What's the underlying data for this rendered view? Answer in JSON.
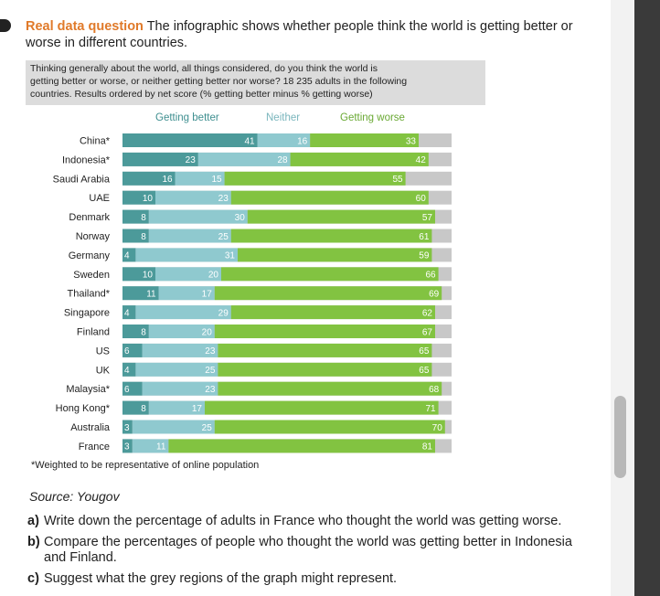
{
  "question": {
    "label": "Real data question",
    "intro_line1": "The infographic shows whether people think the world is getting better or",
    "intro_line2": "worse in different countries."
  },
  "survey": {
    "line1": "Thinking generally about the world, all things considered, do you think the world is",
    "line2": "getting better or worse, or neither getting better nor worse? 18 235 adults in the following",
    "line3": "countries. Results ordered by net score (% getting better minus % getting worse)"
  },
  "chart_data": {
    "type": "bar",
    "stacked": true,
    "orientation": "horizontal",
    "legend": [
      "Getting better",
      "Neither",
      "Getting worse"
    ],
    "colors": {
      "better": "#4c9a9a",
      "neither": "#8fc9cf",
      "worse": "#82c341",
      "unknown": "#c8c8c8"
    },
    "categories": [
      "China*",
      "Indonesia*",
      "Saudi Arabia",
      "UAE",
      "Denmark",
      "Norway",
      "Germany",
      "Sweden",
      "Thailand*",
      "Singapore",
      "Finland",
      "US",
      "UK",
      "Malaysia*",
      "Hong Kong*",
      "Australia",
      "France"
    ],
    "series": [
      {
        "name": "Getting better",
        "values": [
          41,
          23,
          16,
          10,
          8,
          8,
          4,
          10,
          11,
          4,
          8,
          6,
          4,
          6,
          8,
          3,
          3
        ]
      },
      {
        "name": "Neither",
        "values": [
          16,
          28,
          15,
          23,
          30,
          25,
          31,
          20,
          17,
          29,
          20,
          23,
          25,
          23,
          17,
          25,
          11
        ]
      },
      {
        "name": "Getting worse",
        "values": [
          33,
          42,
          55,
          60,
          57,
          61,
          59,
          66,
          69,
          62,
          67,
          65,
          65,
          68,
          71,
          70,
          81
        ]
      }
    ],
    "xlim": [
      0,
      100
    ]
  },
  "footnote": "*Weighted to be representative of online population",
  "source": "Source: Yougov",
  "questions": [
    {
      "letter": "a)",
      "text": "Write down the percentage of adults in France who thought the world was getting worse."
    },
    {
      "letter": "b)",
      "text": "Compare the percentages of people who thought the world was getting better in Indonesia",
      "text2": "and Finland."
    },
    {
      "letter": "c)",
      "text": "Suggest what the grey regions of the graph might represent."
    }
  ]
}
